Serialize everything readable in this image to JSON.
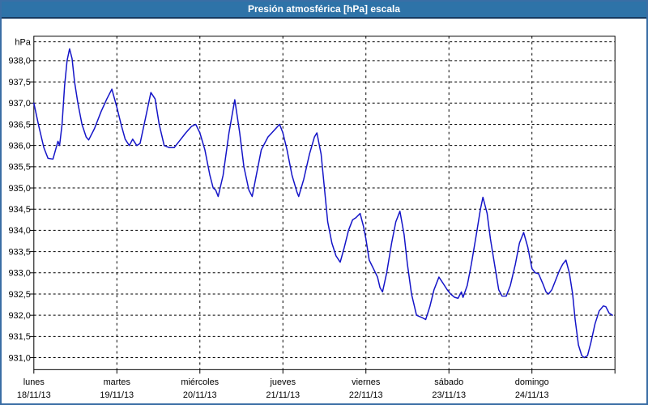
{
  "window": {
    "title": "Presión atmosférica [hPa] escala",
    "titlebar_color": "#2E73A8",
    "titlebar_underline_color": "#16395F",
    "border_color": "#3A6EA5",
    "background_color": "#FFFFFF"
  },
  "chart_data": {
    "type": "line",
    "title": "Presión atmosférica [hPa] escala",
    "ylabel": "hPa",
    "unit_label": "hPa",
    "grid": "dashed",
    "legend": "none",
    "ylim": [
      930.7,
      938.45
    ],
    "y_tick_step": 0.5,
    "y_tick_values": [
      938.0,
      937.5,
      937.0,
      936.5,
      936.0,
      935.5,
      935.0,
      934.5,
      934.0,
      933.5,
      933.0,
      932.5,
      932.0,
      931.5,
      931.0
    ],
    "y_tick_labels": [
      "938,0",
      "937,5",
      "937,0",
      "936,5",
      "936,0",
      "935,5",
      "935,0",
      "934,5",
      "934,0",
      "933,5",
      "933,0",
      "932,5",
      "932,0",
      "931,5",
      "931,0"
    ],
    "x_days": [
      {
        "name": "lunes",
        "date": "18/11/13"
      },
      {
        "name": "martes",
        "date": "19/11/13"
      },
      {
        "name": "miércoles",
        "date": "20/11/13"
      },
      {
        "name": "jueves",
        "date": "21/11/13"
      },
      {
        "name": "viernes",
        "date": "22/11/13"
      },
      {
        "name": "sábado",
        "date": "23/11/13"
      },
      {
        "name": "domingo",
        "date": "24/11/13"
      }
    ],
    "x_unit": "days since 18/11/13 00:00",
    "series": [
      {
        "name": "Presión atmosférica [hPa]",
        "color": "#1414C8",
        "points": [
          [
            0.0,
            937.0
          ],
          [
            0.06,
            936.45
          ],
          [
            0.12,
            935.95
          ],
          [
            0.17,
            935.7
          ],
          [
            0.23,
            935.68
          ],
          [
            0.29,
            936.1
          ],
          [
            0.31,
            936.0
          ],
          [
            0.34,
            936.5
          ],
          [
            0.37,
            937.4
          ],
          [
            0.4,
            938.0
          ],
          [
            0.43,
            938.28
          ],
          [
            0.46,
            938.05
          ],
          [
            0.49,
            937.5
          ],
          [
            0.53,
            937.0
          ],
          [
            0.58,
            936.5
          ],
          [
            0.63,
            936.2
          ],
          [
            0.66,
            936.13
          ],
          [
            0.73,
            936.4
          ],
          [
            0.81,
            936.8
          ],
          [
            0.88,
            937.1
          ],
          [
            0.94,
            937.33
          ],
          [
            1.0,
            936.9
          ],
          [
            1.05,
            936.5
          ],
          [
            1.1,
            936.15
          ],
          [
            1.15,
            936.0
          ],
          [
            1.19,
            936.15
          ],
          [
            1.24,
            936.0
          ],
          [
            1.28,
            936.05
          ],
          [
            1.34,
            936.6
          ],
          [
            1.41,
            937.25
          ],
          [
            1.46,
            937.1
          ],
          [
            1.51,
            936.5
          ],
          [
            1.57,
            936.0
          ],
          [
            1.63,
            935.95
          ],
          [
            1.69,
            935.95
          ],
          [
            1.75,
            936.1
          ],
          [
            1.83,
            936.3
          ],
          [
            1.9,
            936.45
          ],
          [
            1.95,
            936.5
          ],
          [
            2.0,
            936.3
          ],
          [
            2.06,
            935.9
          ],
          [
            2.12,
            935.3
          ],
          [
            2.16,
            935.0
          ],
          [
            2.19,
            934.95
          ],
          [
            2.22,
            934.8
          ],
          [
            2.28,
            935.3
          ],
          [
            2.35,
            936.3
          ],
          [
            2.42,
            937.08
          ],
          [
            2.48,
            936.3
          ],
          [
            2.53,
            935.5
          ],
          [
            2.59,
            934.95
          ],
          [
            2.63,
            934.8
          ],
          [
            2.68,
            935.3
          ],
          [
            2.74,
            935.9
          ],
          [
            2.82,
            936.2
          ],
          [
            2.89,
            936.35
          ],
          [
            2.96,
            936.5
          ],
          [
            3.0,
            936.3
          ],
          [
            3.05,
            935.9
          ],
          [
            3.11,
            935.3
          ],
          [
            3.17,
            934.9
          ],
          [
            3.19,
            934.8
          ],
          [
            3.25,
            935.2
          ],
          [
            3.32,
            935.8
          ],
          [
            3.38,
            936.2
          ],
          [
            3.41,
            936.3
          ],
          [
            3.46,
            935.8
          ],
          [
            3.5,
            935.0
          ],
          [
            3.54,
            934.2
          ],
          [
            3.59,
            933.7
          ],
          [
            3.64,
            933.4
          ],
          [
            3.69,
            933.25
          ],
          [
            3.74,
            933.6
          ],
          [
            3.79,
            934.0
          ],
          [
            3.84,
            934.25
          ],
          [
            3.88,
            934.3
          ],
          [
            3.93,
            934.4
          ],
          [
            3.97,
            934.1
          ],
          [
            4.0,
            933.8
          ],
          [
            4.04,
            933.3
          ],
          [
            4.09,
            933.1
          ],
          [
            4.14,
            932.9
          ],
          [
            4.17,
            932.65
          ],
          [
            4.2,
            932.55
          ],
          [
            4.25,
            933.0
          ],
          [
            4.31,
            933.7
          ],
          [
            4.36,
            934.2
          ],
          [
            4.41,
            934.45
          ],
          [
            4.46,
            933.9
          ],
          [
            4.5,
            933.2
          ],
          [
            4.55,
            932.5
          ],
          [
            4.61,
            932.0
          ],
          [
            4.67,
            931.95
          ],
          [
            4.72,
            931.9
          ],
          [
            4.77,
            932.2
          ],
          [
            4.82,
            932.6
          ],
          [
            4.88,
            932.9
          ],
          [
            4.93,
            932.75
          ],
          [
            4.98,
            932.6
          ],
          [
            5.02,
            932.5
          ],
          [
            5.07,
            932.42
          ],
          [
            5.11,
            932.4
          ],
          [
            5.15,
            932.55
          ],
          [
            5.17,
            932.42
          ],
          [
            5.22,
            932.7
          ],
          [
            5.27,
            933.2
          ],
          [
            5.33,
            933.9
          ],
          [
            5.38,
            934.5
          ],
          [
            5.41,
            934.78
          ],
          [
            5.46,
            934.4
          ],
          [
            5.5,
            933.8
          ],
          [
            5.55,
            933.2
          ],
          [
            5.6,
            932.6
          ],
          [
            5.64,
            932.45
          ],
          [
            5.69,
            932.45
          ],
          [
            5.74,
            932.7
          ],
          [
            5.8,
            933.2
          ],
          [
            5.85,
            933.7
          ],
          [
            5.9,
            933.95
          ],
          [
            5.95,
            933.6
          ],
          [
            6.0,
            933.1
          ],
          [
            6.04,
            933.0
          ],
          [
            6.08,
            932.98
          ],
          [
            6.13,
            932.75
          ],
          [
            6.17,
            932.55
          ],
          [
            6.2,
            932.5
          ],
          [
            6.24,
            932.6
          ],
          [
            6.29,
            932.85
          ],
          [
            6.33,
            933.05
          ],
          [
            6.37,
            933.2
          ],
          [
            6.41,
            933.3
          ],
          [
            6.45,
            933.0
          ],
          [
            6.49,
            932.5
          ],
          [
            6.52,
            931.9
          ],
          [
            6.56,
            931.3
          ],
          [
            6.6,
            931.05
          ],
          [
            6.63,
            931.0
          ],
          [
            6.67,
            931.05
          ],
          [
            6.71,
            931.35
          ],
          [
            6.76,
            931.8
          ],
          [
            6.81,
            932.1
          ],
          [
            6.86,
            932.22
          ],
          [
            6.89,
            932.2
          ],
          [
            6.93,
            932.05
          ],
          [
            6.97,
            932.0
          ]
        ]
      }
    ]
  }
}
